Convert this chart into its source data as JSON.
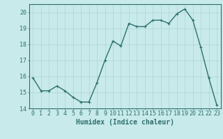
{
  "xlabel": "Humidex (Indice chaleur)",
  "x": [
    0,
    1,
    2,
    3,
    4,
    5,
    6,
    7,
    8,
    9,
    10,
    11,
    12,
    13,
    14,
    15,
    16,
    17,
    18,
    19,
    20,
    21,
    22,
    23
  ],
  "y": [
    15.9,
    15.1,
    15.1,
    15.4,
    15.1,
    14.7,
    14.4,
    14.4,
    15.6,
    17.0,
    18.2,
    17.9,
    19.3,
    19.1,
    19.1,
    19.5,
    19.5,
    19.3,
    19.9,
    20.2,
    19.5,
    17.8,
    15.9,
    14.2
  ],
  "line_color": "#2d6e6e",
  "bg_color": "#c8eaea",
  "grid_color": "#aed4d4",
  "tick_color": "#2d6e6e",
  "axis_color": "#2d6e6e",
  "ylim": [
    14,
    20.5
  ],
  "yticks": [
    14,
    15,
    16,
    17,
    18,
    19,
    20
  ],
  "marker": "+",
  "marker_size": 3,
  "line_width": 1.0,
  "font_color": "#2d6e6e",
  "xlabel_fontsize": 7,
  "tick_fontsize": 6
}
